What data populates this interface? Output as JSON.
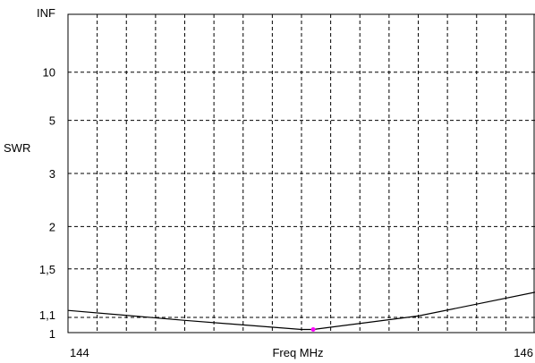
{
  "chart_data": {
    "type": "line",
    "xlabel": "Freq MHz",
    "ylabel": "SWR",
    "x_ticks": [
      {
        "value": 144,
        "label": "144"
      },
      {
        "value": 146,
        "label": "146"
      }
    ],
    "y_ticks": [
      {
        "value": "INF",
        "label": "INF"
      },
      {
        "value": 10,
        "label": "10"
      },
      {
        "value": 5,
        "label": "5"
      },
      {
        "value": 3,
        "label": "3"
      },
      {
        "value": 2,
        "label": "2"
      },
      {
        "value": 1.5,
        "label": "1,5"
      },
      {
        "value": 1.1,
        "label": "1,1"
      },
      {
        "value": 1,
        "label": "1"
      }
    ],
    "y_scale": "reflection-coefficient",
    "xlim": [
      144,
      146
    ],
    "grid": true,
    "grid_style": "dashed",
    "vertical_gridlines": 16,
    "series": [
      {
        "color": "#000000",
        "x": [
          144.0,
          144.5,
          145.0,
          145.05,
          145.5,
          146.0
        ],
        "y": [
          1.15,
          1.08,
          1.02,
          1.02,
          1.11,
          1.29
        ]
      }
    ],
    "marker": {
      "x": 145.05,
      "y": 1.02,
      "color": "#ff00ff"
    }
  }
}
